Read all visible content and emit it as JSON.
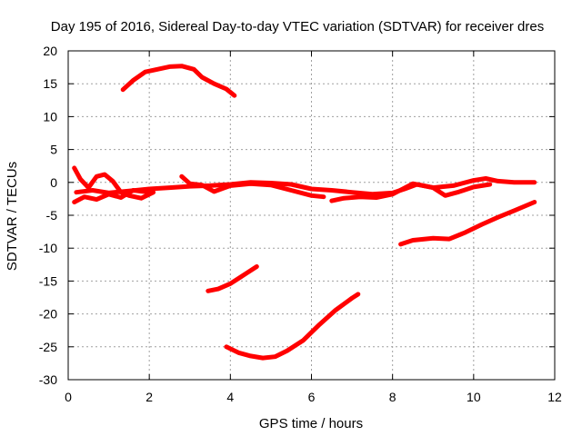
{
  "chart_data": {
    "type": "line",
    "title": "Day 195 of 2016, Sidereal Day-to-day VTEC variation (SDTVAR) for receiver dres",
    "xlabel": "GPS time / hours",
    "ylabel": "SDTVAR / TECUs",
    "xlim": [
      0,
      12
    ],
    "ylim": [
      -30,
      20
    ],
    "xticks": [
      0,
      2,
      4,
      6,
      8,
      10,
      12
    ],
    "yticks": [
      -30,
      -25,
      -20,
      -15,
      -10,
      -5,
      0,
      5,
      10,
      15,
      20
    ],
    "grid": true,
    "legend": "none",
    "series_color": "#ff0000",
    "series": [
      {
        "name": "arc-upper",
        "x": [
          1.35,
          1.6,
          1.9,
          2.2,
          2.5,
          2.8,
          3.1,
          3.3,
          3.6,
          3.9,
          4.1
        ],
        "y": [
          14.1,
          15.5,
          16.8,
          17.2,
          17.6,
          17.7,
          17.2,
          16.0,
          15.0,
          14.2,
          13.2
        ]
      },
      {
        "name": "near-zero-main",
        "x": [
          0.2,
          0.6,
          1.0,
          1.5,
          2.0,
          2.5,
          3.0,
          3.5,
          4.0,
          4.5,
          5.0,
          5.5,
          6.0,
          6.5,
          7.0,
          7.5,
          8.0,
          8.3,
          8.6,
          9.0,
          9.5,
          10.0,
          10.3,
          10.6,
          11.0,
          11.5
        ],
        "y": [
          -1.5,
          -1.2,
          -1.6,
          -1.3,
          -1.0,
          -0.8,
          -0.6,
          -0.5,
          -0.3,
          0.0,
          -0.1,
          -0.3,
          -1.0,
          -1.2,
          -1.5,
          -1.8,
          -1.6,
          -1.0,
          -0.3,
          -0.8,
          -0.5,
          0.3,
          0.6,
          0.2,
          0.0,
          0.0
        ]
      },
      {
        "name": "near-zero-start-bundle",
        "x": [
          0.15,
          0.3,
          0.5,
          0.7,
          0.9,
          1.1,
          1.3,
          1.5,
          1.8,
          2.1
        ],
        "y": [
          2.2,
          0.5,
          -0.8,
          0.9,
          1.2,
          0.2,
          -1.5,
          -2.0,
          -2.4,
          -1.5
        ]
      },
      {
        "name": "near-zero-start-low",
        "x": [
          0.15,
          0.4,
          0.7,
          1.0,
          1.3,
          1.6,
          2.0
        ],
        "y": [
          -3.0,
          -2.2,
          -2.6,
          -1.8,
          -2.3,
          -1.2,
          -1.5
        ]
      },
      {
        "name": "near-zero-mid",
        "x": [
          2.8,
          3.0,
          3.3,
          3.6,
          4.0,
          4.5,
          5.0,
          5.5,
          6.0,
          6.3
        ],
        "y": [
          0.9,
          -0.2,
          -0.4,
          -1.4,
          -0.5,
          -0.2,
          -0.4,
          -1.2,
          -2.0,
          -2.2
        ]
      },
      {
        "name": "near-zero-late",
        "x": [
          6.5,
          6.8,
          7.2,
          7.6,
          8.0,
          8.5,
          9.0,
          9.3,
          9.6,
          10.0,
          10.4
        ],
        "y": [
          -2.8,
          -2.4,
          -2.2,
          -2.3,
          -1.8,
          -0.2,
          -0.8,
          -2.0,
          -1.5,
          -0.7,
          -0.3
        ]
      },
      {
        "name": "descending-right",
        "x": [
          8.2,
          8.5,
          9.0,
          9.4,
          9.8,
          10.2,
          10.6,
          11.0,
          11.5
        ],
        "y": [
          -9.4,
          -8.8,
          -8.5,
          -8.6,
          -7.6,
          -6.4,
          -5.3,
          -4.3,
          -3.0
        ]
      },
      {
        "name": "arc-mid-low",
        "x": [
          3.45,
          3.7,
          4.0,
          4.2,
          4.4,
          4.65
        ],
        "y": [
          -16.5,
          -16.2,
          -15.4,
          -14.6,
          -13.8,
          -12.8
        ]
      },
      {
        "name": "arc-bottom",
        "x": [
          3.9,
          4.2,
          4.5,
          4.8,
          5.1,
          5.4,
          5.8,
          6.2,
          6.6,
          7.0,
          7.15
        ],
        "y": [
          -25.0,
          -25.9,
          -26.4,
          -26.7,
          -26.5,
          -25.6,
          -24.0,
          -21.6,
          -19.4,
          -17.6,
          -17.0
        ]
      }
    ]
  }
}
